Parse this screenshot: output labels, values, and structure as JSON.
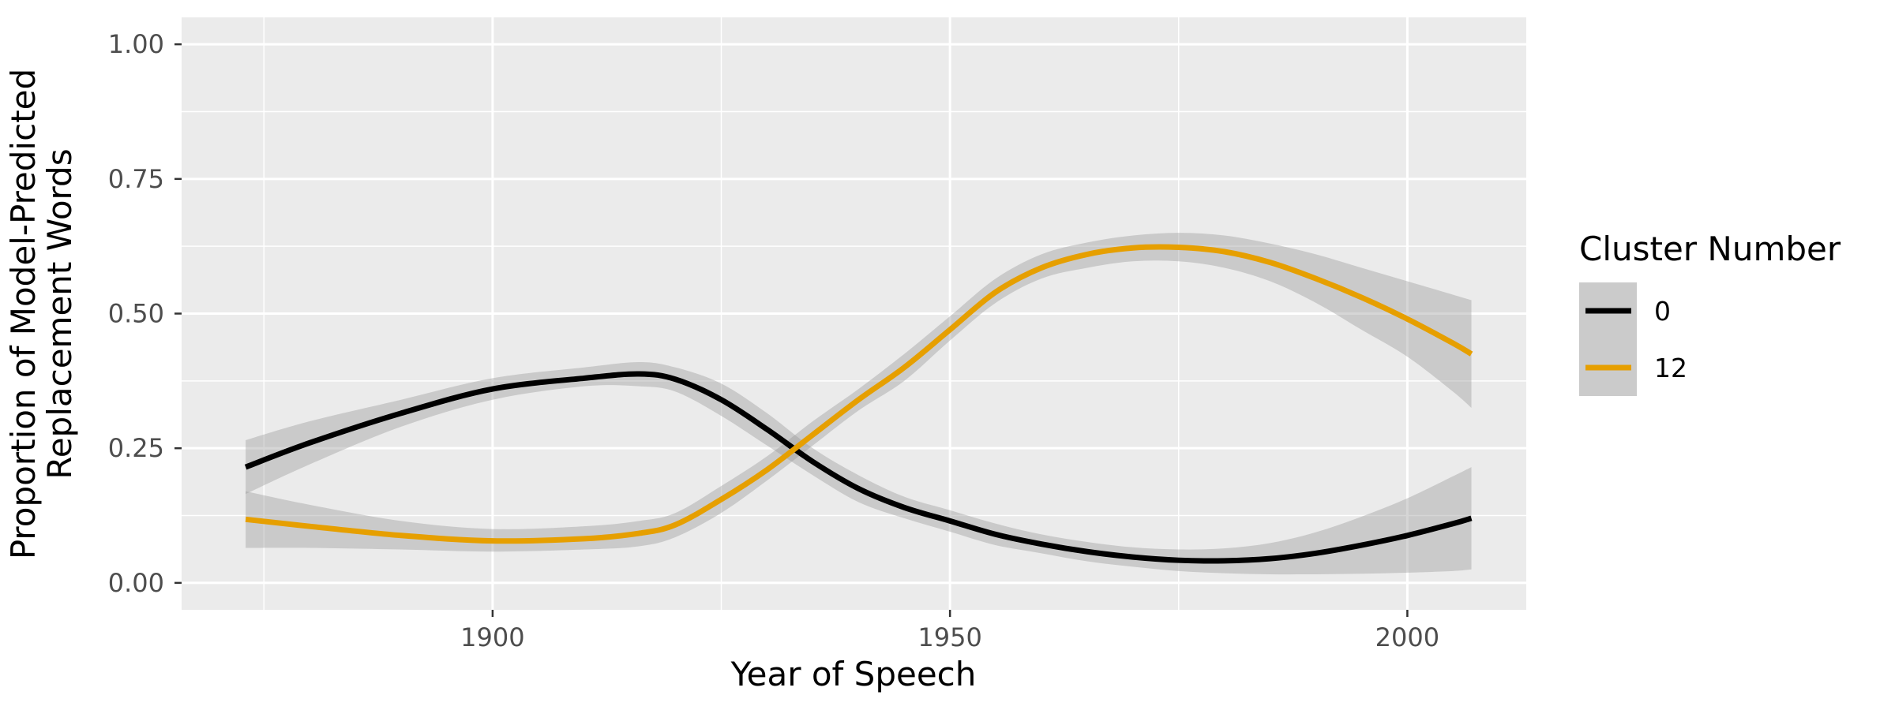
{
  "chart_data": {
    "type": "line",
    "title": "",
    "xlabel": "Year of Speech",
    "ylabel_lines": [
      "Proportion of Model-Predicted",
      "Replacement Words"
    ],
    "xlim": [
      1866,
      2013
    ],
    "ylim": [
      -0.05,
      1.05
    ],
    "x_ticks": [
      1900,
      1950,
      2000
    ],
    "x_minor_ticks": [
      1875,
      1925,
      1975
    ],
    "y_ticks": [
      0.0,
      0.25,
      0.5,
      0.75,
      1.0
    ],
    "y_tick_labels": [
      "0.00",
      "0.25",
      "0.50",
      "0.75",
      "1.00"
    ],
    "y_minor_ticks": [
      0.125,
      0.375,
      0.625,
      0.875
    ],
    "grid": true,
    "smoothed_with_confidence_band": true,
    "legend": {
      "title": "Cluster Number",
      "position": "right",
      "entries": [
        "0",
        "12"
      ]
    },
    "x": [
      1873,
      1880,
      1890,
      1900,
      1910,
      1916,
      1920,
      1925,
      1930,
      1935,
      1940,
      1945,
      1950,
      1955,
      1960,
      1965,
      1970,
      1975,
      1980,
      1985,
      1990,
      1995,
      2000,
      2005,
      2007
    ],
    "series": [
      {
        "name": "0",
        "color": "#000000",
        "values": [
          0.215,
          0.26,
          0.315,
          0.36,
          0.38,
          0.388,
          0.378,
          0.34,
          0.285,
          0.225,
          0.175,
          0.14,
          0.115,
          0.09,
          0.072,
          0.058,
          0.048,
          0.042,
          0.041,
          0.045,
          0.055,
          0.07,
          0.088,
          0.11,
          0.12
        ],
        "lower": [
          0.165,
          0.22,
          0.29,
          0.34,
          0.365,
          0.365,
          0.355,
          0.31,
          0.255,
          0.2,
          0.15,
          0.12,
          0.095,
          0.07,
          0.055,
          0.04,
          0.03,
          0.022,
          0.018,
          0.016,
          0.016,
          0.017,
          0.019,
          0.022,
          0.025
        ],
        "upper": [
          0.265,
          0.3,
          0.34,
          0.38,
          0.4,
          0.41,
          0.4,
          0.37,
          0.315,
          0.25,
          0.2,
          0.16,
          0.135,
          0.11,
          0.09,
          0.076,
          0.066,
          0.062,
          0.064,
          0.074,
          0.094,
          0.123,
          0.157,
          0.198,
          0.215
        ]
      },
      {
        "name": "12",
        "color": "#E69F00",
        "values": [
          0.118,
          0.105,
          0.088,
          0.078,
          0.082,
          0.092,
          0.108,
          0.155,
          0.21,
          0.275,
          0.34,
          0.4,
          0.47,
          0.54,
          0.585,
          0.61,
          0.622,
          0.623,
          0.615,
          0.595,
          0.565,
          0.53,
          0.49,
          0.445,
          0.425
        ],
        "lower": [
          0.065,
          0.065,
          0.062,
          0.058,
          0.062,
          0.068,
          0.085,
          0.13,
          0.19,
          0.255,
          0.32,
          0.375,
          0.45,
          0.52,
          0.565,
          0.585,
          0.597,
          0.597,
          0.585,
          0.56,
          0.52,
          0.47,
          0.42,
          0.355,
          0.325
        ],
        "upper": [
          0.17,
          0.145,
          0.115,
          0.1,
          0.105,
          0.115,
          0.13,
          0.18,
          0.235,
          0.3,
          0.36,
          0.425,
          0.495,
          0.565,
          0.61,
          0.632,
          0.645,
          0.65,
          0.645,
          0.63,
          0.61,
          0.585,
          0.56,
          0.535,
          0.525
        ]
      }
    ]
  }
}
